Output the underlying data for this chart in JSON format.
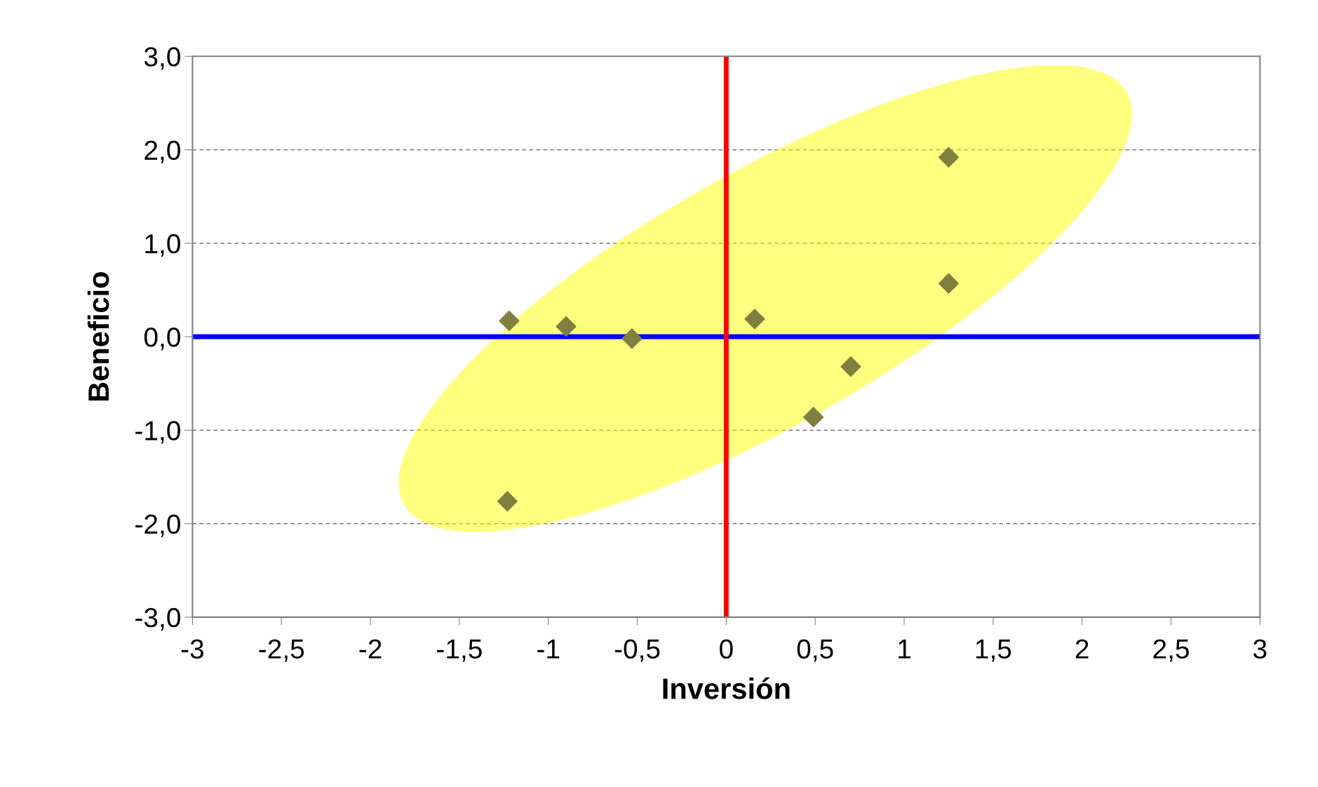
{
  "chart_data": {
    "type": "scatter",
    "xlabel": "Inversión",
    "ylabel": "Beneficio",
    "x": [
      -1.22,
      -0.9,
      -0.53,
      -1.23,
      0.16,
      0.7,
      0.49,
      1.25,
      1.25
    ],
    "series": [
      {
        "color": "#7f7f40",
        "values": [
          0.17,
          0.11,
          -0.02,
          -1.76,
          0.19,
          -0.32,
          -0.86,
          1.92,
          0.57
        ]
      }
    ],
    "marker": "diamond",
    "xlim": [
      -3,
      3
    ],
    "xticks": [
      -3,
      {
        "value": -2.5,
        "label": "-2,5"
      },
      -2,
      {
        "value": -1.5,
        "label": "-1,5"
      },
      -1,
      {
        "value": -0.5,
        "label": "-0,5"
      },
      0,
      {
        "value": 0.5,
        "label": "0,5"
      },
      1,
      {
        "value": 1.5,
        "label": "1,5"
      },
      2,
      {
        "value": 2.5,
        "label": "2,5"
      },
      3
    ],
    "ylim": [
      -3,
      3
    ],
    "yticks": [
      {
        "value": -3,
        "label": "-3,0"
      },
      {
        "value": -2,
        "label": "-2,0"
      },
      {
        "value": -1,
        "label": "-1,0"
      },
      {
        "value": 0,
        "label": "0,0"
      },
      {
        "value": 1,
        "label": "1,0"
      },
      {
        "value": 2,
        "label": "2,0"
      },
      {
        "value": 3,
        "label": "3,0"
      }
    ],
    "grid": "y",
    "ref_lines": [
      {
        "axis": "y",
        "value": 0,
        "color": "#0000ff"
      },
      {
        "axis": "x",
        "value": 0,
        "color": "#ff0000"
      }
    ]
  }
}
